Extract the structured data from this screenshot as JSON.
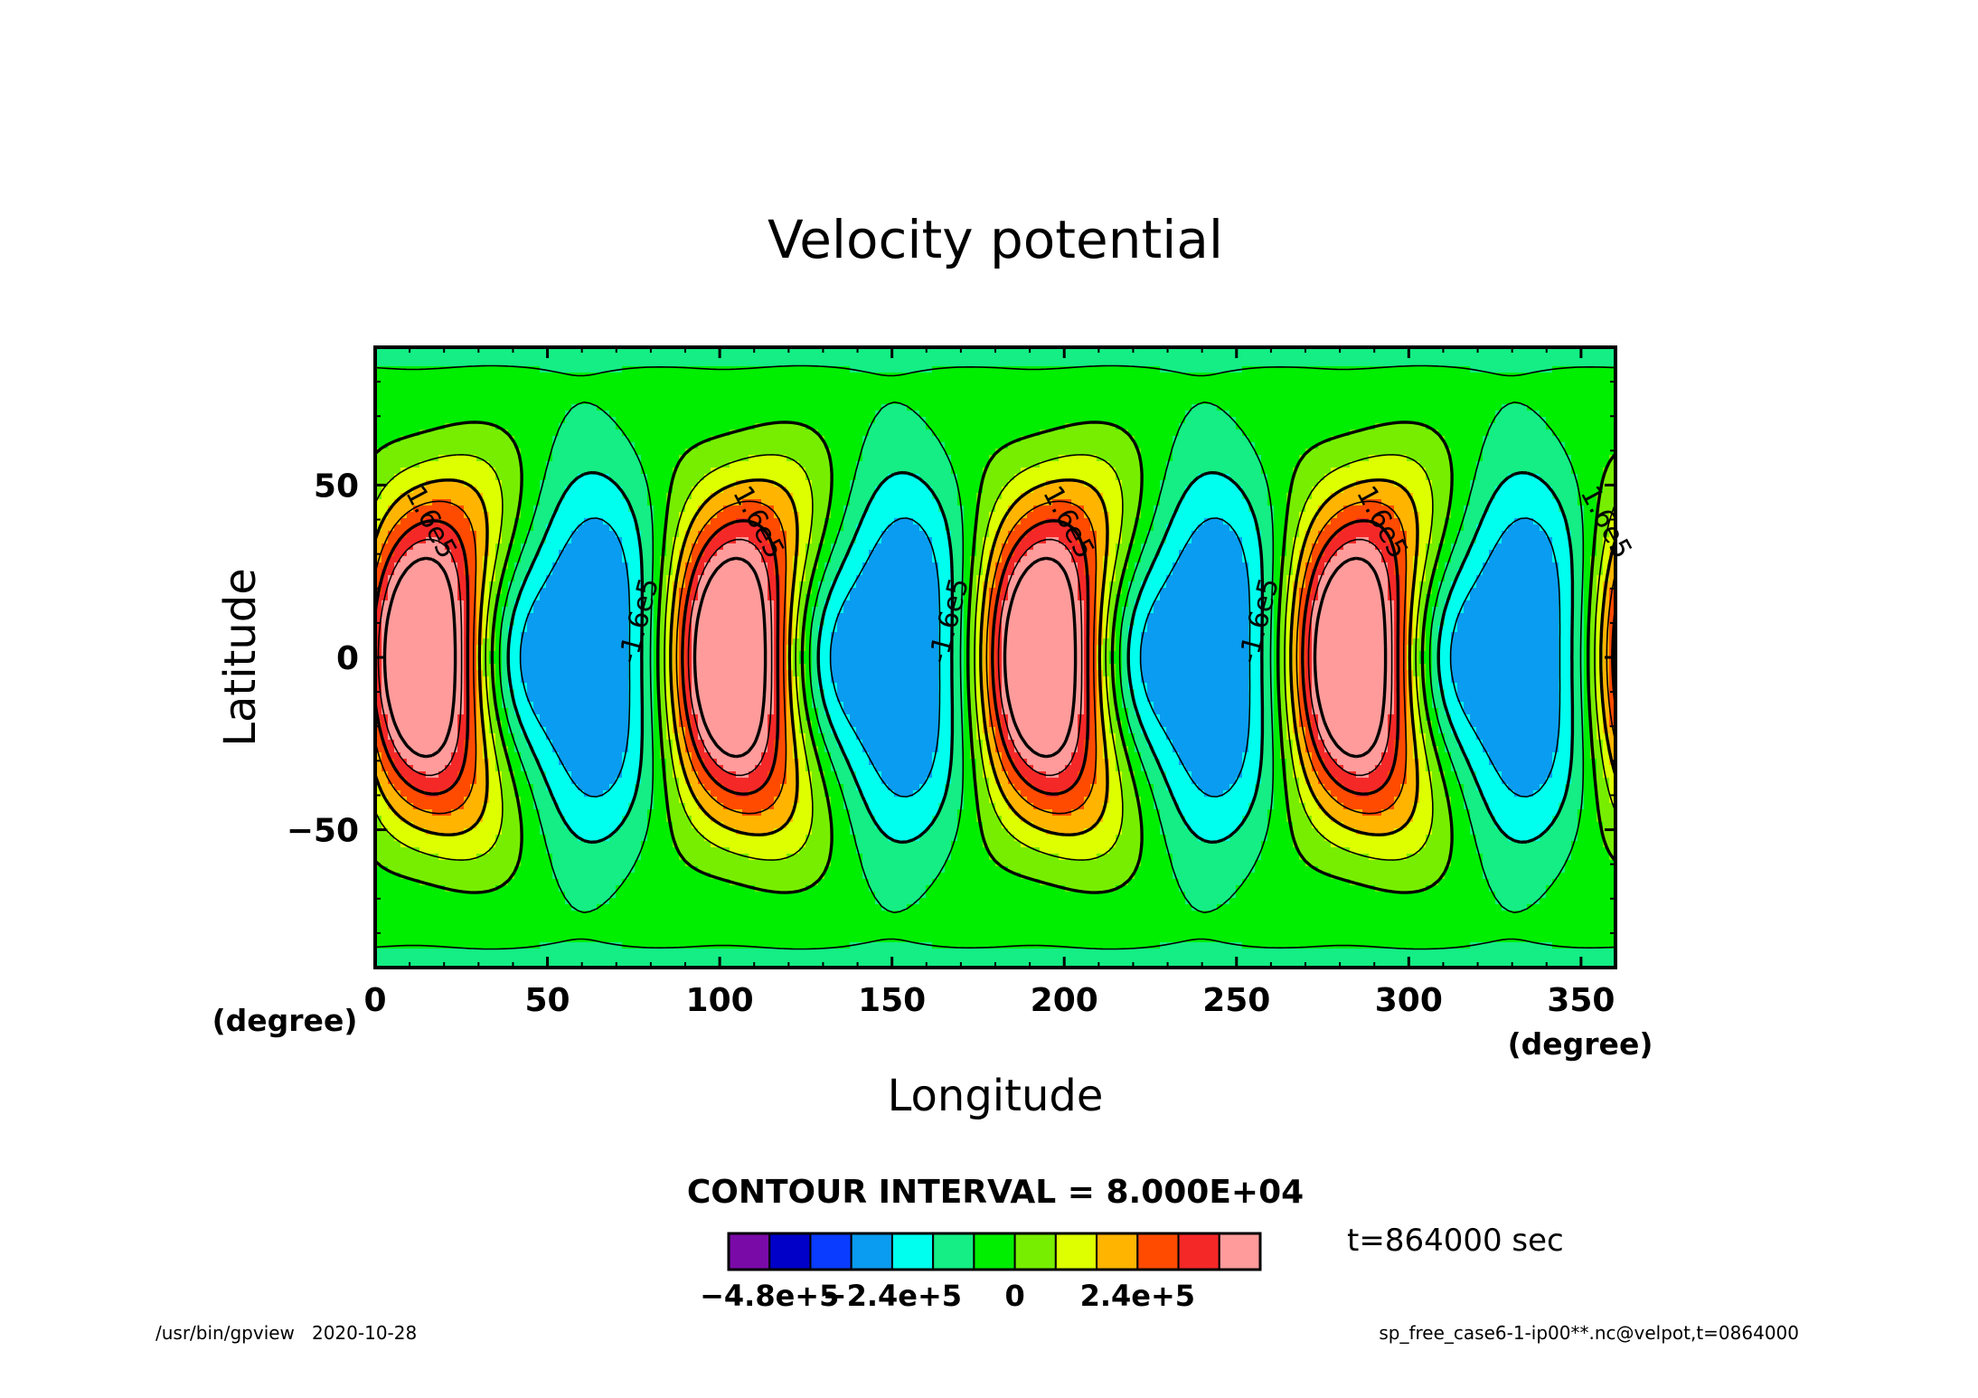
{
  "chart_data": {
    "type": "heatmap",
    "title": "Velocity potential",
    "xlabel": "Longitude",
    "ylabel": "Latitude",
    "x_unit": "(degree)",
    "y_unit": "(degree)",
    "xlim": [
      0,
      360
    ],
    "ylim": [
      -90,
      90
    ],
    "x_ticks": [
      0,
      50,
      100,
      150,
      200,
      250,
      300,
      350
    ],
    "y_ticks": [
      -50,
      0,
      50
    ],
    "contour_interval_text": "CONTOUR INTERVAL = 8.000E+04",
    "contour_labels": [
      "1.6e5",
      "1.6e5",
      "1.6e5",
      "1.6e5",
      "1.6e5",
      "-1.6e5",
      "-1.6e5",
      "-1.6e5"
    ],
    "wave_number": 4,
    "level_min": -480000,
    "level_max": 480000,
    "level_step": 80000,
    "colorbar": {
      "colors": [
        "#7a0aa8",
        "#0000c8",
        "#0a3cff",
        "#0a9cf0",
        "#00ffee",
        "#14ee84",
        "#00ee00",
        "#77ee00",
        "#ddff00",
        "#ffb400",
        "#ff4b00",
        "#f52828",
        "#ff9b9b"
      ],
      "tick_labels": [
        "-4.8e+5",
        "-2.4e+5",
        "0",
        "2.4e+5"
      ],
      "tick_values": [
        -480000,
        -240000,
        0,
        240000
      ]
    },
    "time_label": "t=864000 sec",
    "footer_left": "/usr/bin/gpview   2020-10-28",
    "footer_right": "sp_free_case6-1-ip00**.nc@velpot,t=0864000"
  }
}
